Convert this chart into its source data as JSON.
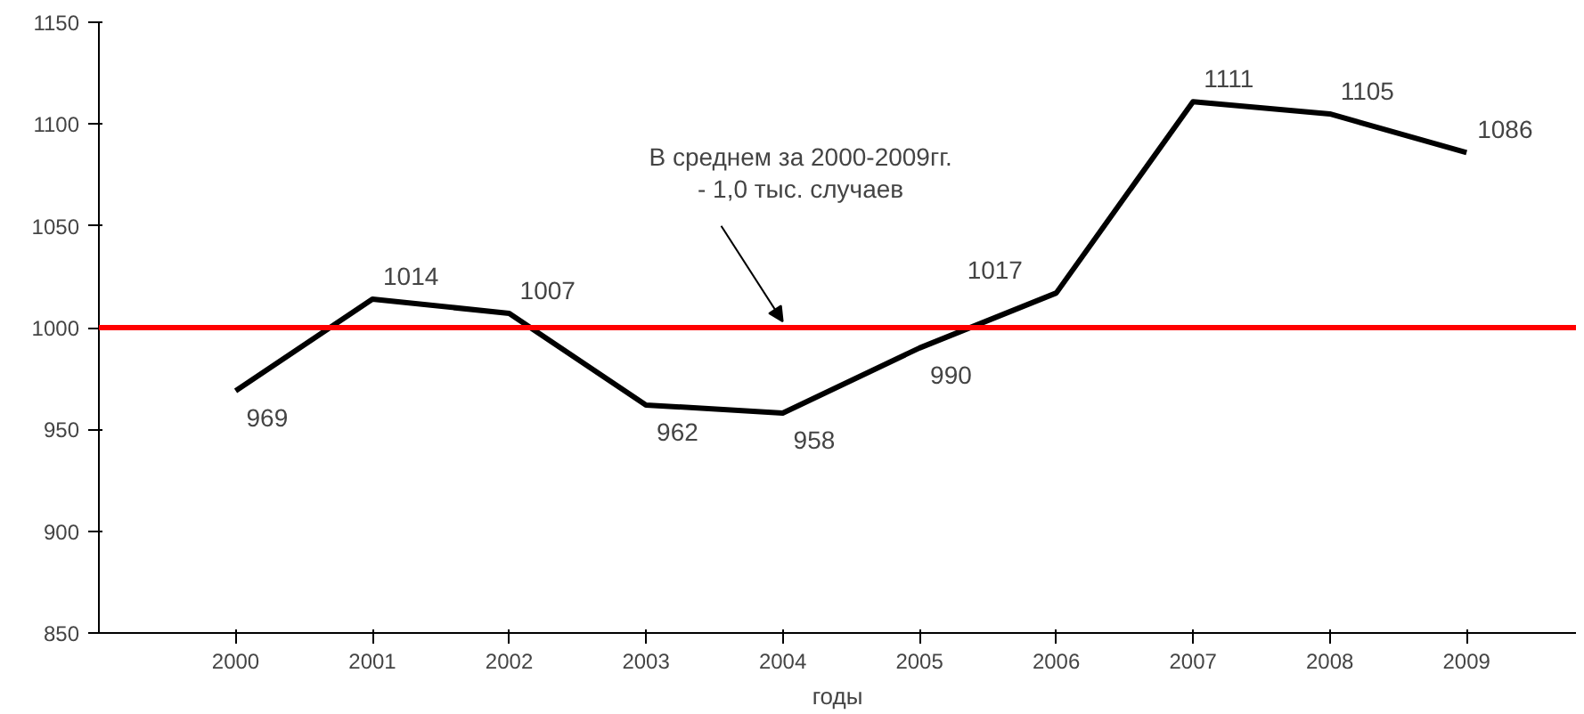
{
  "chart_data": {
    "type": "line",
    "xlabel": "годы",
    "x": [
      2000,
      2001,
      2002,
      2003,
      2004,
      2005,
      2006,
      2007,
      2008,
      2009
    ],
    "series": [
      {
        "color": "#000000",
        "values": [
          969,
          1014,
          1007,
          962,
          958,
          990,
          1017,
          1111,
          1105,
          1086
        ]
      }
    ],
    "xlim": [
      1999,
      2009.8
    ],
    "xticks": [
      2000,
      2001,
      2002,
      2003,
      2004,
      2005,
      2006,
      2007,
      2008,
      2009
    ],
    "ylim": [
      850,
      1150
    ],
    "yticks": [
      850,
      900,
      950,
      1000,
      1050,
      1100,
      1150
    ],
    "ref_lines": [
      {
        "axis": "y",
        "value": 1000,
        "color": "#ff0000"
      }
    ],
    "annotations": [
      {
        "text": "В среднем за 2000-2009гг.\n- 1,0 тыс. случаев",
        "x": 2004,
        "y": 1000
      }
    ],
    "data_labels": true,
    "grid": false,
    "marker": "none",
    "line_style": "solid"
  }
}
